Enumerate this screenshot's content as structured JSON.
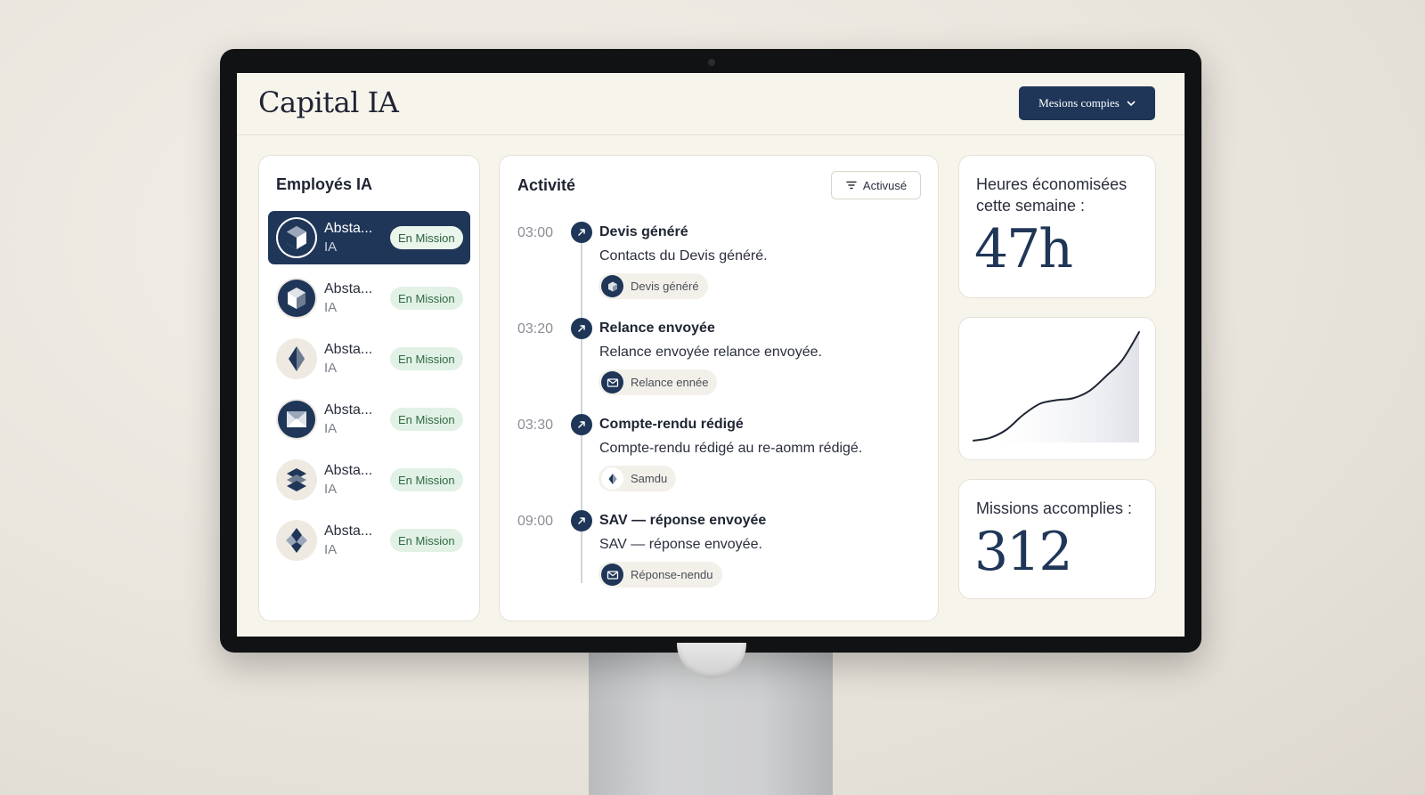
{
  "app": {
    "title": "Capital IA",
    "missions_dropdown_label": "Mesions compies"
  },
  "employees": {
    "title": "Employés IA",
    "items": [
      {
        "name": "Absta...",
        "role": "IA",
        "status": "En Mission",
        "active": true,
        "avatar_icon": "hexagon-cube-icon"
      },
      {
        "name": "Absta...",
        "role": "IA",
        "status": "En Mission",
        "active": false,
        "avatar_icon": "cube-icon"
      },
      {
        "name": "Absta...",
        "role": "IA",
        "status": "En Mission",
        "active": false,
        "avatar_icon": "diamond-icon"
      },
      {
        "name": "Absta...",
        "role": "IA",
        "status": "En Mission",
        "active": false,
        "avatar_icon": "envelope-shape-icon"
      },
      {
        "name": "Absta...",
        "role": "IA",
        "status": "En Mission",
        "active": false,
        "avatar_icon": "stacked-layers-icon"
      },
      {
        "name": "Absta...",
        "role": "IA",
        "status": "En Mission",
        "active": false,
        "avatar_icon": "diamond-stack-icon"
      }
    ]
  },
  "activity": {
    "title": "Activité",
    "filter_label": "Activusé",
    "events": [
      {
        "time": "03:00",
        "title": "Devis généré",
        "description": "Contacts du Devis généré.",
        "chip": "Devis généré",
        "chip_icon": "cube-icon"
      },
      {
        "time": "03:20",
        "title": "Relance envoyée",
        "description": "Relance envoyée relance envoyée.",
        "chip": "Relance ennée",
        "chip_icon": "mail-icon"
      },
      {
        "time": "03:30",
        "title": "Compte-rendu rédigé",
        "description": "Compte-rendu rédigé au re-aomm rédigé.",
        "chip": "Samdu",
        "chip_icon": "diamond-icon"
      },
      {
        "time": "09:00",
        "title": "SAV — réponse envoyée",
        "description": "SAV — réponse envoyée.",
        "chip": "Réponse-nendu",
        "chip_icon": "mail-icon"
      }
    ]
  },
  "stats": {
    "hours_label": "Heures économisées cette semaine :",
    "hours_value": "47h",
    "missions_label": "Missions accomplies :",
    "missions_value": "312"
  },
  "chart_data": {
    "type": "area",
    "x": [
      0,
      1,
      2,
      3,
      4,
      5,
      6,
      7,
      8,
      9,
      10
    ],
    "values": [
      2,
      5,
      14,
      30,
      42,
      46,
      48,
      56,
      72,
      90,
      120
    ],
    "title": "",
    "xlabel": "",
    "ylabel": "",
    "grid": false,
    "color": "#1f2433"
  },
  "colors": {
    "navy": "#1f3658",
    "badge_bg": "#e2f1e6",
    "badge_text": "#2f6a43",
    "screen_bg": "#f7f4ec"
  }
}
